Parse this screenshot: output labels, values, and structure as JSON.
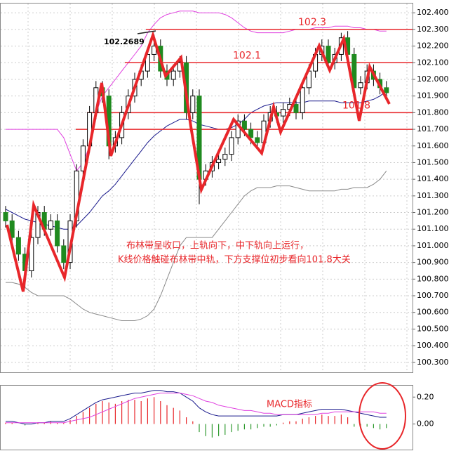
{
  "chart_data": [
    {
      "type": "candlestick",
      "open": [
        101.2,
        101.15,
        101.05,
        100.95,
        100.85,
        101.05,
        101.2,
        101.1,
        101.15,
        101.0,
        100.9,
        101.15,
        101.45,
        101.6,
        101.8,
        101.95,
        101.9,
        101.6,
        101.65,
        101.8,
        101.9,
        102.0,
        102.05,
        102.15,
        102.2,
        102.05,
        102.0,
        102.05,
        102.1,
        101.8,
        101.9,
        101.4,
        101.45,
        101.5,
        101.52,
        101.55,
        101.65,
        101.75,
        101.7,
        101.65,
        101.62,
        101.75,
        101.8,
        101.78,
        101.82,
        101.85,
        101.8,
        101.95,
        102.05,
        102.15,
        102.2,
        102.1,
        102.15,
        102.25,
        102.15,
        101.95,
        101.98,
        102.05,
        102.0,
        101.95
      ],
      "high": [
        101.24,
        101.19,
        101.09,
        100.99,
        101.09,
        101.24,
        101.24,
        101.19,
        101.19,
        101.04,
        101.19,
        101.49,
        101.64,
        101.84,
        101.99,
        101.99,
        101.94,
        101.69,
        101.84,
        101.94,
        102.04,
        102.09,
        102.19,
        102.27,
        102.24,
        102.09,
        102.09,
        102.14,
        102.14,
        101.94,
        101.94,
        101.49,
        101.54,
        101.56,
        101.59,
        101.69,
        101.79,
        101.79,
        101.74,
        101.69,
        101.79,
        101.84,
        101.84,
        101.86,
        101.89,
        101.89,
        101.99,
        102.09,
        102.19,
        102.24,
        102.24,
        102.19,
        102.28,
        102.29,
        102.19,
        102.02,
        102.09,
        102.09,
        102.04,
        101.99
      ],
      "low": [
        101.11,
        101.01,
        100.91,
        100.75,
        100.81,
        101.01,
        101.06,
        101.06,
        100.96,
        100.86,
        100.86,
        101.11,
        101.41,
        101.56,
        101.76,
        101.86,
        101.52,
        101.56,
        101.61,
        101.76,
        101.86,
        101.96,
        102.01,
        102.11,
        102.01,
        101.96,
        101.96,
        102.01,
        101.76,
        101.76,
        101.25,
        101.36,
        101.41,
        101.46,
        101.48,
        101.51,
        101.61,
        101.66,
        101.61,
        101.58,
        101.58,
        101.71,
        101.74,
        101.74,
        101.78,
        101.76,
        101.76,
        101.91,
        102.01,
        102.11,
        102.06,
        102.06,
        102.11,
        102.11,
        101.91,
        101.91,
        101.94,
        101.96,
        101.91,
        101.88
      ],
      "close": [
        101.15,
        101.05,
        100.95,
        100.85,
        101.05,
        101.2,
        101.1,
        101.15,
        101.0,
        100.9,
        101.15,
        101.45,
        101.6,
        101.8,
        101.95,
        101.9,
        101.6,
        101.65,
        101.8,
        101.9,
        102.0,
        102.05,
        102.15,
        102.2,
        102.05,
        102.0,
        102.05,
        102.1,
        101.8,
        101.9,
        101.4,
        101.45,
        101.5,
        101.52,
        101.55,
        101.65,
        101.75,
        101.7,
        101.65,
        101.62,
        101.75,
        101.8,
        101.78,
        101.82,
        101.85,
        101.8,
        101.95,
        102.05,
        102.15,
        102.2,
        102.1,
        102.15,
        102.25,
        102.15,
        101.95,
        101.98,
        102.05,
        102.0,
        101.95,
        101.92
      ],
      "up_color": "#ffffff",
      "down_color": "#1f8a1f",
      "lines": [
        {
          "color": "#e040e0",
          "values": [
            101.7,
            101.7,
            101.7,
            101.7,
            101.7,
            101.7,
            101.7,
            101.7,
            101.7,
            101.65,
            101.55,
            101.45,
            101.5,
            101.6,
            101.8,
            101.9,
            101.95,
            102.0,
            102.05,
            102.1,
            102.15,
            102.2,
            102.28,
            102.33,
            102.37,
            102.39,
            102.4,
            102.41,
            102.41,
            102.41,
            102.4,
            102.4,
            102.4,
            102.4,
            102.39,
            102.37,
            102.34,
            102.31,
            102.29,
            102.28,
            102.28,
            102.28,
            102.28,
            102.28,
            102.29,
            102.3,
            102.3,
            102.3,
            102.31,
            102.31,
            102.31,
            102.32,
            102.32,
            102.32,
            102.31,
            102.31,
            102.3,
            102.3,
            102.29,
            102.29
          ]
        },
        {
          "color": "#1a1a8c",
          "values": [
            101.22,
            101.2,
            101.18,
            101.16,
            101.15,
            101.14,
            101.13,
            101.12,
            101.11,
            101.1,
            101.1,
            101.12,
            101.16,
            101.2,
            101.25,
            101.3,
            101.33,
            101.37,
            101.42,
            101.47,
            101.52,
            101.57,
            101.62,
            101.66,
            101.69,
            101.72,
            101.74,
            101.76,
            101.76,
            101.75,
            101.73,
            101.72,
            101.71,
            101.7,
            101.7,
            101.71,
            101.73,
            101.76,
            101.8,
            101.82,
            101.84,
            101.85,
            101.86,
            101.86,
            101.86,
            101.86,
            101.86,
            101.87,
            101.87,
            101.87,
            101.87,
            101.87,
            101.86,
            101.86,
            101.86,
            101.86,
            101.87,
            101.88,
            101.9,
            101.93
          ]
        },
        {
          "color": "#8a8a8a",
          "values": [
            100.78,
            100.78,
            100.77,
            100.75,
            100.72,
            100.7,
            100.7,
            100.7,
            100.7,
            100.7,
            100.68,
            100.65,
            100.62,
            100.6,
            100.59,
            100.58,
            100.57,
            100.56,
            100.55,
            100.55,
            100.55,
            100.56,
            100.58,
            100.62,
            100.7,
            100.8,
            100.9,
            101.0,
            101.05,
            101.05,
            101.05,
            101.05,
            101.05,
            101.1,
            101.15,
            101.2,
            101.25,
            101.3,
            101.33,
            101.35,
            101.35,
            101.35,
            101.36,
            101.36,
            101.36,
            101.35,
            101.34,
            101.33,
            101.33,
            101.33,
            101.33,
            101.33,
            101.34,
            101.34,
            101.35,
            101.35,
            101.35,
            101.37,
            101.4,
            101.45
          ]
        }
      ],
      "levels": [
        102.3,
        102.1,
        101.8,
        101.7
      ],
      "level_color": "#e8262a",
      "high_annotation": 102.2689,
      "ylim": [
        100.24,
        102.46
      ],
      "yticks": [
        {
          "value": 102.4,
          "label": "102.4000"
        },
        {
          "value": 102.3,
          "label": "102.3000"
        },
        {
          "value": 102.2,
          "label": "102.2000"
        },
        {
          "value": 102.1,
          "label": "102.1000"
        },
        {
          "value": 102.0,
          "label": "102.0000"
        },
        {
          "value": 101.9,
          "label": "101.9000"
        },
        {
          "value": 101.8,
          "label": "101.8000"
        },
        {
          "value": 101.7,
          "label": "101.7000"
        },
        {
          "value": 101.6,
          "label": "101.6000"
        },
        {
          "value": 101.5,
          "label": "101.5000"
        },
        {
          "value": 101.4,
          "label": "101.4000"
        },
        {
          "value": 101.3,
          "label": "101.3000"
        },
        {
          "value": 101.2,
          "label": "101.2000"
        },
        {
          "value": 101.1,
          "label": "101.1000"
        },
        {
          "value": 101.0,
          "label": "101.0000"
        },
        {
          "value": 100.9,
          "label": "100.9000"
        },
        {
          "value": 100.8,
          "label": "100.8000"
        },
        {
          "value": 100.7,
          "label": "100.7000"
        },
        {
          "value": 100.6,
          "label": "100.6000"
        },
        {
          "value": 100.5,
          "label": "100.5000"
        },
        {
          "value": 100.4,
          "label": "100.4000"
        },
        {
          "value": 100.3,
          "label": "100.3000"
        }
      ],
      "grid": true,
      "annotations": [
        "布林带呈收口，上轨向下，中下轨向上运行，",
        "K线价格触碰布林带中轨，下方支撑位初步看向101.8大关"
      ]
    },
    {
      "type": "macd",
      "histogram": [
        0.01,
        0.01,
        0.0,
        -0.01,
        0.0,
        0.01,
        0.01,
        0.02,
        0.01,
        0.01,
        0.03,
        0.06,
        0.09,
        0.12,
        0.15,
        0.17,
        0.16,
        0.15,
        0.17,
        0.18,
        0.18,
        0.17,
        0.19,
        0.2,
        0.17,
        0.14,
        0.12,
        0.1,
        0.05,
        0.02,
        -0.06,
        -0.09,
        -0.1,
        -0.09,
        -0.08,
        -0.06,
        -0.05,
        -0.04,
        -0.04,
        -0.03,
        -0.02,
        -0.02,
        -0.01,
        0.01,
        0.02,
        0.02,
        0.04,
        0.05,
        0.06,
        0.07,
        0.06,
        0.06,
        0.07,
        0.05,
        -0.02,
        -0.03,
        -0.02,
        -0.03,
        -0.04,
        -0.03
      ],
      "up_color": "#e8262a",
      "down_color": "#2e9a2e",
      "lines": [
        {
          "color": "#1a1a8c",
          "values": [
            0.02,
            0.02,
            0.01,
            0.0,
            0.0,
            0.01,
            0.01,
            0.02,
            0.02,
            0.02,
            0.04,
            0.07,
            0.1,
            0.13,
            0.16,
            0.18,
            0.19,
            0.2,
            0.21,
            0.22,
            0.23,
            0.23,
            0.24,
            0.25,
            0.25,
            0.24,
            0.24,
            0.23,
            0.2,
            0.17,
            0.12,
            0.09,
            0.07,
            0.06,
            0.06,
            0.06,
            0.06,
            0.06,
            0.06,
            0.06,
            0.06,
            0.06,
            0.06,
            0.07,
            0.07,
            0.07,
            0.08,
            0.09,
            0.1,
            0.11,
            0.11,
            0.11,
            0.11,
            0.1,
            0.09,
            0.08,
            0.07,
            0.06,
            0.05,
            0.05
          ]
        },
        {
          "color": "#e040e0",
          "values": [
            0.01,
            0.01,
            0.01,
            0.01,
            0.01,
            0.01,
            0.01,
            0.01,
            0.01,
            0.01,
            0.02,
            0.03,
            0.04,
            0.05,
            0.07,
            0.09,
            0.11,
            0.13,
            0.15,
            0.17,
            0.19,
            0.2,
            0.21,
            0.22,
            0.23,
            0.23,
            0.23,
            0.23,
            0.22,
            0.21,
            0.19,
            0.17,
            0.16,
            0.14,
            0.13,
            0.12,
            0.11,
            0.1,
            0.1,
            0.09,
            0.08,
            0.08,
            0.07,
            0.07,
            0.07,
            0.07,
            0.07,
            0.07,
            0.07,
            0.08,
            0.08,
            0.09,
            0.09,
            0.09,
            0.09,
            0.09,
            0.09,
            0.09,
            0.08,
            0.08
          ]
        }
      ],
      "annotation": "MACD指标",
      "ylim": [
        -0.19,
        0.29
      ],
      "yticks": [
        {
          "value": 0.2,
          "label": "0.20"
        },
        {
          "value": 0.0,
          "label": "0.00"
        }
      ]
    }
  ]
}
